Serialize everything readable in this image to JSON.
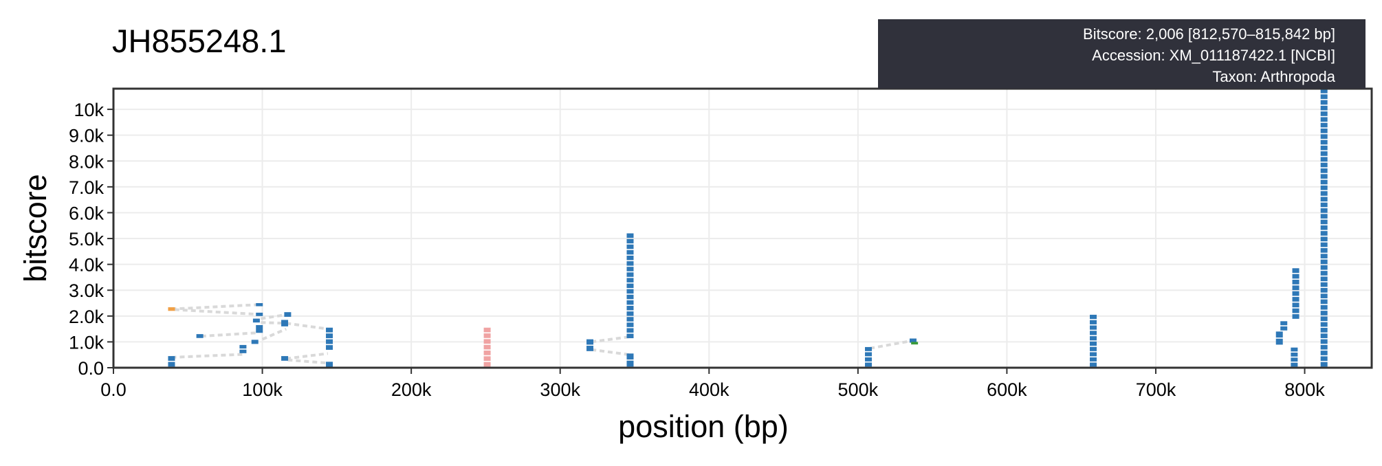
{
  "chart_data": {
    "type": "scatter",
    "title": "JH855248.1",
    "xlabel": "position (bp)",
    "ylabel": "bitscore",
    "xlim": [
      0,
      845000
    ],
    "ylim": [
      0,
      10800
    ],
    "grid": true,
    "xticks": [
      {
        "value": 0,
        "label": "0.0"
      },
      {
        "value": 100000,
        "label": "100k"
      },
      {
        "value": 200000,
        "label": "200k"
      },
      {
        "value": 300000,
        "label": "300k"
      },
      {
        "value": 400000,
        "label": "400k"
      },
      {
        "value": 500000,
        "label": "500k"
      },
      {
        "value": 600000,
        "label": "600k"
      },
      {
        "value": 700000,
        "label": "700k"
      },
      {
        "value": 800000,
        "label": "800k"
      }
    ],
    "yticks": [
      {
        "value": 0,
        "label": "0.0"
      },
      {
        "value": 1000,
        "label": "1.0k"
      },
      {
        "value": 2000,
        "label": "2.0k"
      },
      {
        "value": 3000,
        "label": "3.0k"
      },
      {
        "value": 4000,
        "label": "4.0k"
      },
      {
        "value": 5000,
        "label": "5.0k"
      },
      {
        "value": 6000,
        "label": "6.0k"
      },
      {
        "value": 7000,
        "label": "7.0k"
      },
      {
        "value": 8000,
        "label": "8.0k"
      },
      {
        "value": 9000,
        "label": "9.0k"
      },
      {
        "value": 10000,
        "label": "10k"
      }
    ],
    "colors": {
      "blue": "#2e78b7",
      "orange": "#f0a046",
      "pink": "#f0a3a3",
      "green": "#3a9a3a",
      "connector": "#d9d9d9",
      "grid": "#ececec",
      "axis": "#333333"
    },
    "series": [
      {
        "color": "blue",
        "points": [
          {
            "x": 39000,
            "y": 450,
            "y2": 0
          },
          {
            "x": 58000,
            "y": 1300,
            "y2": 1150
          },
          {
            "x": 87000,
            "y": 880,
            "y2": 520
          },
          {
            "x": 95000,
            "y": 1080,
            "y2": 920
          },
          {
            "x": 96000,
            "y": 1900,
            "y2": 1750
          },
          {
            "x": 98000,
            "y": 2500,
            "y2": 2380
          },
          {
            "x": 98000,
            "y": 2130,
            "y2": 2000
          },
          {
            "x": 98000,
            "y": 1650,
            "y2": 1350
          },
          {
            "x": 115000,
            "y": 450,
            "y2": 270
          },
          {
            "x": 115000,
            "y": 1850,
            "y2": 1600
          },
          {
            "x": 117000,
            "y": 2150,
            "y2": 1970
          },
          {
            "x": 145000,
            "y": 1550,
            "y2": 650
          },
          {
            "x": 145000,
            "y": 230,
            "y2": 0
          },
          {
            "x": 320000,
            "y": 1100,
            "y2": 600
          },
          {
            "x": 347000,
            "y": 5200,
            "y2": 1100
          },
          {
            "x": 347000,
            "y": 550,
            "y2": 0
          },
          {
            "x": 507000,
            "y": 800,
            "y2": 0
          },
          {
            "x": 537000,
            "y": 1130,
            "y2": 970
          },
          {
            "x": 658000,
            "y": 2050,
            "y2": 600
          },
          {
            "x": 658000,
            "y": 600,
            "y2": 0
          },
          {
            "x": 783000,
            "y": 1400,
            "y2": 850
          },
          {
            "x": 786000,
            "y": 1800,
            "y2": 1400
          },
          {
            "x": 794000,
            "y": 3850,
            "y2": 1850
          },
          {
            "x": 793000,
            "y": 780,
            "y2": 0
          },
          {
            "x": 813000,
            "y": 10800,
            "y2": 0
          }
        ]
      },
      {
        "color": "orange",
        "points": [
          {
            "x": 39000,
            "y": 2340,
            "y2": 2200
          }
        ]
      },
      {
        "color": "pink",
        "points": [
          {
            "x": 251000,
            "y": 1550,
            "y2": 0
          }
        ]
      },
      {
        "color": "green",
        "points": [
          {
            "x": 538000,
            "y": 1000,
            "y2": 900
          }
        ]
      }
    ],
    "connectors": [
      {
        "from": [
          39000,
          2270
        ],
        "to": [
          97000,
          2440
        ]
      },
      {
        "from": [
          41000,
          2250
        ],
        "to": [
          96000,
          2070
        ]
      },
      {
        "from": [
          39000,
          400
        ],
        "to": [
          88000,
          520
        ]
      },
      {
        "from": [
          59000,
          1220
        ],
        "to": [
          96000,
          1350
        ]
      },
      {
        "from": [
          99000,
          1900
        ],
        "to": [
          116000,
          2050
        ]
      },
      {
        "from": [
          99000,
          1750
        ],
        "to": [
          116000,
          1720
        ]
      },
      {
        "from": [
          100000,
          1100
        ],
        "to": [
          116000,
          1500
        ]
      },
      {
        "from": [
          116000,
          1720
        ],
        "to": [
          144000,
          1500
        ]
      },
      {
        "from": [
          116000,
          350
        ],
        "to": [
          144000,
          550
        ]
      },
      {
        "from": [
          117000,
          300
        ],
        "to": [
          144000,
          180
        ]
      },
      {
        "from": [
          321000,
          1000
        ],
        "to": [
          347000,
          1200
        ]
      },
      {
        "from": [
          321000,
          700
        ],
        "to": [
          347000,
          500
        ]
      },
      {
        "from": [
          508000,
          750
        ],
        "to": [
          537000,
          1050
        ]
      }
    ],
    "tooltip": {
      "line1": "Bitscore: 2,006 [812,570–815,842 bp]",
      "line2": "Accession: XM_011187422.1 [NCBI]",
      "line3": "Taxon: Arthropoda"
    }
  }
}
